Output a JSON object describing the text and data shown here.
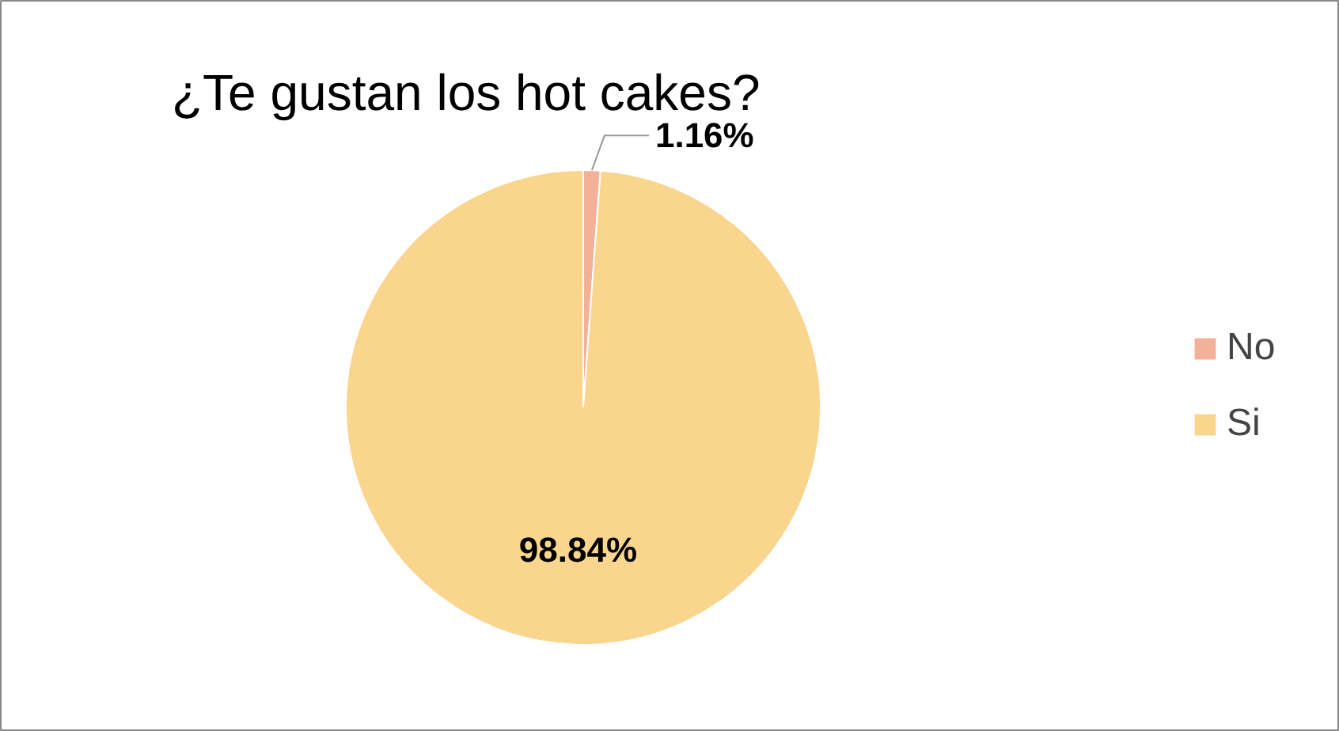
{
  "chart_data": {
    "type": "pie",
    "title": "¿Te gustan los hot cakes?",
    "categories": [
      "No",
      "Si"
    ],
    "values": [
      1.16,
      98.84
    ],
    "colors": [
      "#f4b19a",
      "#f9d58e"
    ],
    "value_labels": [
      "1.16%",
      "98.84%"
    ],
    "legend": "right"
  }
}
